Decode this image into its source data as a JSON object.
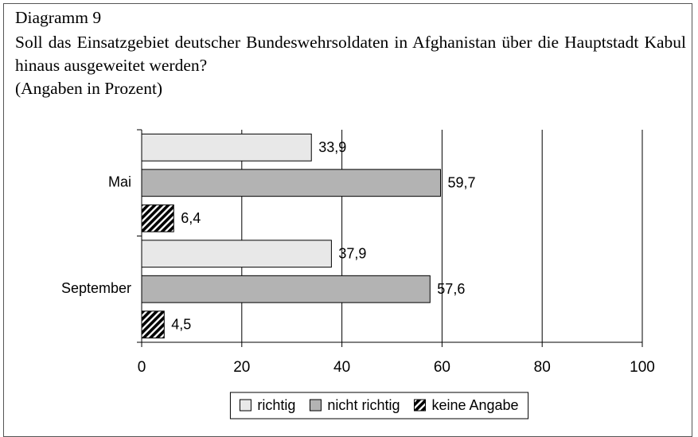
{
  "chart_data": {
    "type": "barh",
    "title": "Diagramm 9",
    "subtitle": "Soll das Einsatzgebiet deutscher Bundeswehrsoldaten in Afghanistan über die Hauptstadt Kabul hinaus ausgeweitet werden?",
    "note": "(Angaben in Prozent)",
    "categories": [
      "Mai",
      "September"
    ],
    "series": [
      {
        "name": "richtig",
        "color": "#e8e8e8",
        "values": [
          33.9,
          37.9
        ],
        "value_labels": [
          "33,9",
          "37,9"
        ]
      },
      {
        "name": "nicht richtig",
        "color": "#b3b3b3",
        "values": [
          59.7,
          57.6
        ],
        "value_labels": [
          "59,7",
          "57,6"
        ]
      },
      {
        "name": "keine Angabe",
        "color": "#000000",
        "hatch": true,
        "values": [
          6.4,
          4.5
        ],
        "value_labels": [
          "6,4",
          "4,5"
        ]
      }
    ],
    "xlim": [
      0,
      100
    ],
    "xticks": [
      0,
      20,
      40,
      60,
      80,
      100
    ],
    "grid": true,
    "legend": "bottom"
  }
}
